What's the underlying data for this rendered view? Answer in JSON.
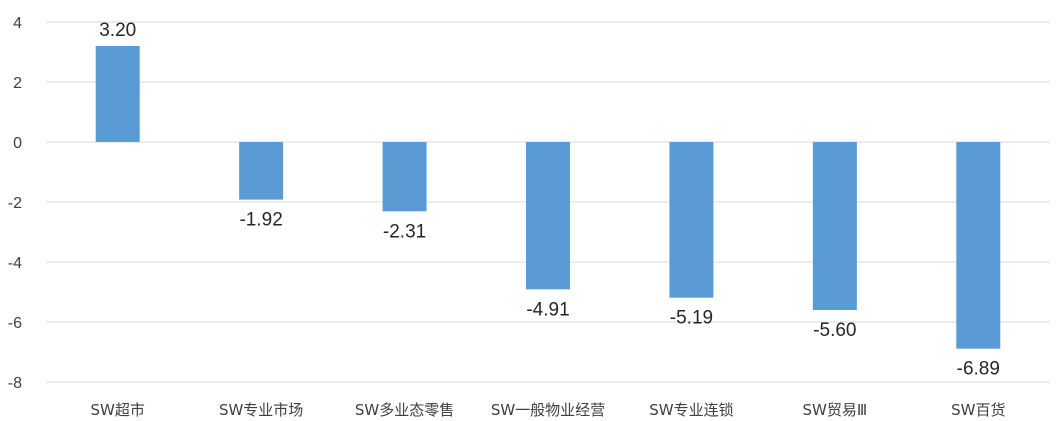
{
  "chart_data": {
    "type": "bar",
    "categories": [
      "SW超市",
      "SW专业市场",
      "SW多业态零售",
      "SW一般物业经营",
      "SW专业连锁",
      "SW贸易Ⅲ",
      "SW百货"
    ],
    "values": [
      3.2,
      -1.92,
      -2.31,
      -4.91,
      -5.19,
      -5.6,
      -6.89
    ],
    "data_labels": [
      "3.20",
      "-1.92",
      "-2.31",
      "-4.91",
      "-5.19",
      "-5.60",
      "-6.89"
    ],
    "yticks": [
      4,
      2,
      0,
      -2,
      -4,
      -6,
      -8
    ],
    "ylim": [
      -8,
      4
    ],
    "grid": true,
    "legend": "none",
    "bar_color": "#5b9bd5",
    "title": "",
    "xlabel": "",
    "ylabel": ""
  }
}
